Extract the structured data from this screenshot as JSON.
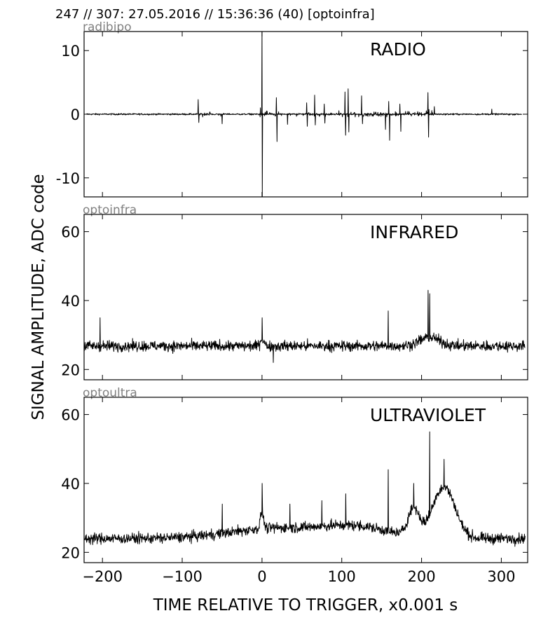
{
  "header": {
    "text": "247 // 307:   27.05.2016 // 15:36:36 (40)  [optoinfra]"
  },
  "x_axis": {
    "label": "TIME RELATIVE TO TRIGGER,   x0.001 s",
    "ticks": [
      "-200",
      "-100",
      "0",
      "100",
      "200",
      "300"
    ]
  },
  "y_axis": {
    "label": "SIGNAL AMPLITUDE,  ADC code"
  },
  "chart_data": [
    {
      "type": "line",
      "channel": "radibipo",
      "title": "RADIO",
      "xlim": [
        -223,
        333
      ],
      "ylim": [
        -13,
        13
      ],
      "yticks": [
        10,
        0,
        -10
      ],
      "ytick_labels": [
        "10",
        "0",
        "-10"
      ],
      "baseline": 0,
      "noise": 0.12,
      "peaks": [
        {
          "x": 0,
          "y": 13
        },
        {
          "x": 0.5,
          "y": -13
        },
        {
          "x": -80,
          "y": 2.3
        },
        {
          "x": -79,
          "y": -1.3
        },
        {
          "x": -50,
          "y": -1.5
        },
        {
          "x": -2,
          "y": 1
        },
        {
          "x": 18,
          "y": 2.6
        },
        {
          "x": 19,
          "y": -4.3
        },
        {
          "x": 32,
          "y": -1.6
        },
        {
          "x": 56,
          "y": 1.8
        },
        {
          "x": 57,
          "y": -1.9
        },
        {
          "x": 66,
          "y": 3.0
        },
        {
          "x": 67,
          "y": -1.7
        },
        {
          "x": 78,
          "y": 1.6
        },
        {
          "x": 79,
          "y": -1.4
        },
        {
          "x": 104,
          "y": 3.5
        },
        {
          "x": 105,
          "y": -3.3
        },
        {
          "x": 108,
          "y": 4.0
        },
        {
          "x": 109,
          "y": -2.8
        },
        {
          "x": 125,
          "y": 2.9
        },
        {
          "x": 126,
          "y": -1.5
        },
        {
          "x": 155,
          "y": -2.4
        },
        {
          "x": 159,
          "y": 2.0
        },
        {
          "x": 160,
          "y": -4.1
        },
        {
          "x": 173,
          "y": 1.6
        },
        {
          "x": 174,
          "y": -2.7
        },
        {
          "x": 208,
          "y": 3.4
        },
        {
          "x": 209,
          "y": -3.6
        },
        {
          "x": 216,
          "y": 1.2
        },
        {
          "x": 288,
          "y": 0.8
        }
      ],
      "bursts": [
        {
          "from": -80,
          "to": -50,
          "amp": 0.4
        },
        {
          "from": -5,
          "to": 200,
          "amp": 0.5
        },
        {
          "from": 200,
          "to": 216,
          "amp": 0.7
        }
      ]
    },
    {
      "type": "line",
      "channel": "optoinfra",
      "title": "INFRARED",
      "xlim": [
        -223,
        333
      ],
      "ylim": [
        17,
        65
      ],
      "yticks": [
        60,
        40,
        20
      ],
      "ytick_labels": [
        "60",
        "40",
        "20"
      ],
      "baseline": 26.8,
      "noise": 1.5,
      "peaks": [
        {
          "x": -203,
          "y": 35
        },
        {
          "x": 0,
          "y": 35
        },
        {
          "x": 14,
          "y": 22
        },
        {
          "x": 158,
          "y": 37
        },
        {
          "x": 208,
          "y": 43
        },
        {
          "x": 210,
          "y": 42
        }
      ],
      "bumps": [
        {
          "center": 210,
          "width": 25,
          "height": 2.5
        },
        {
          "center": 0,
          "width": 5,
          "height": 2
        }
      ]
    },
    {
      "type": "line",
      "channel": "optoultra",
      "title": "ULTRAVIOLET",
      "xlim": [
        -223,
        333
      ],
      "ylim": [
        17,
        65
      ],
      "yticks": [
        60,
        40,
        20
      ],
      "ytick_labels": [
        "60",
        "40",
        "20"
      ],
      "baseline": 24,
      "noise": 1.5,
      "peaks": [
        {
          "x": -50,
          "y": 34
        },
        {
          "x": 0,
          "y": 40
        },
        {
          "x": 35,
          "y": 34
        },
        {
          "x": 75,
          "y": 35
        },
        {
          "x": 105,
          "y": 37
        },
        {
          "x": 158,
          "y": 44
        },
        {
          "x": 190,
          "y": 40
        },
        {
          "x": 210,
          "y": 55
        },
        {
          "x": 228,
          "y": 47
        }
      ],
      "bumps": [
        {
          "center": 20,
          "width": 120,
          "height": 3
        },
        {
          "center": 120,
          "width": 80,
          "height": 3
        },
        {
          "center": 190,
          "width": 14,
          "height": 8
        },
        {
          "center": 228,
          "width": 28,
          "height": 15
        },
        {
          "center": 0,
          "width": 4,
          "height": 5
        }
      ]
    }
  ]
}
